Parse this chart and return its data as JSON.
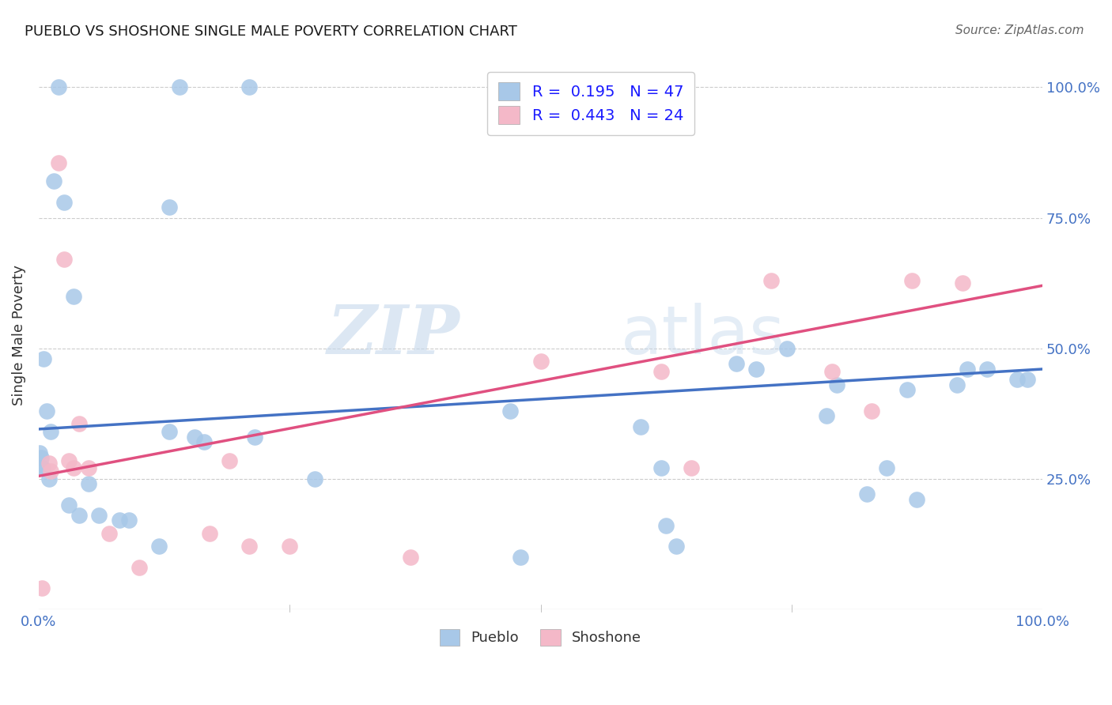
{
  "title": "PUEBLO VS SHOSHONE SINGLE MALE POVERTY CORRELATION CHART",
  "source": "Source: ZipAtlas.com",
  "ylabel": "Single Male Poverty",
  "pueblo_color": "#a8c8e8",
  "shoshone_color": "#f4b8c8",
  "pueblo_line_color": "#4472c4",
  "shoshone_line_color": "#e05080",
  "watermark_zip": "ZIP",
  "watermark_atlas": "atlas",
  "bg_color": "#ffffff",
  "grid_color": "#cccccc",
  "pueblo_regression_intercept": 0.345,
  "pueblo_regression_slope": 0.115,
  "shoshone_regression_intercept": 0.255,
  "shoshone_regression_slope": 0.365,
  "pueblo_scatter_x": [
    0.02,
    0.14,
    0.21,
    0.015,
    0.025,
    0.035,
    0.005,
    0.008,
    0.012,
    0.001,
    0.002,
    0.003,
    0.004,
    0.01,
    0.05,
    0.13,
    0.155,
    0.165,
    0.215,
    0.275,
    0.47,
    0.6,
    0.62,
    0.695,
    0.715,
    0.745,
    0.795,
    0.845,
    0.865,
    0.875,
    0.915,
    0.925,
    0.975,
    0.03,
    0.04,
    0.06,
    0.08,
    0.09,
    0.12,
    0.13,
    0.48,
    0.625,
    0.635,
    0.785,
    0.825,
    0.945,
    0.985
  ],
  "pueblo_scatter_y": [
    1.0,
    1.0,
    1.0,
    0.82,
    0.78,
    0.6,
    0.48,
    0.38,
    0.34,
    0.3,
    0.29,
    0.27,
    0.27,
    0.25,
    0.24,
    0.77,
    0.33,
    0.32,
    0.33,
    0.25,
    0.38,
    0.35,
    0.27,
    0.47,
    0.46,
    0.5,
    0.43,
    0.27,
    0.42,
    0.21,
    0.43,
    0.46,
    0.44,
    0.2,
    0.18,
    0.18,
    0.17,
    0.17,
    0.12,
    0.34,
    0.1,
    0.16,
    0.12,
    0.37,
    0.22,
    0.46,
    0.44
  ],
  "shoshone_scatter_x": [
    0.003,
    0.01,
    0.012,
    0.02,
    0.025,
    0.03,
    0.035,
    0.04,
    0.05,
    0.07,
    0.1,
    0.17,
    0.19,
    0.21,
    0.25,
    0.37,
    0.5,
    0.62,
    0.65,
    0.73,
    0.79,
    0.83,
    0.87,
    0.92
  ],
  "shoshone_scatter_y": [
    0.04,
    0.28,
    0.265,
    0.855,
    0.67,
    0.285,
    0.27,
    0.355,
    0.27,
    0.145,
    0.08,
    0.145,
    0.285,
    0.12,
    0.12,
    0.1,
    0.475,
    0.455,
    0.27,
    0.63,
    0.455,
    0.38,
    0.63,
    0.625
  ],
  "legend1_label": "R =  0.195   N = 47",
  "legend2_label": "R =  0.443   N = 24",
  "bottom_legend1": "Pueblo",
  "bottom_legend2": "Shoshone"
}
